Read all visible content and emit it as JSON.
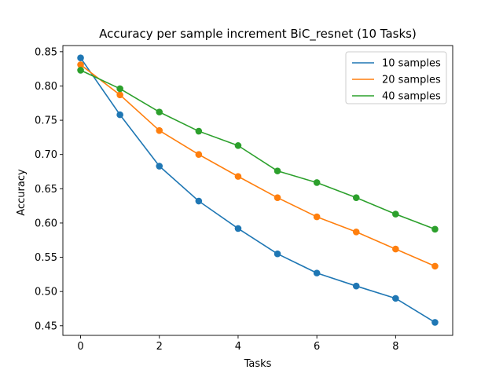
{
  "chart_data": {
    "type": "line",
    "title": "Accuracy per sample increment BiC_resnet (10 Tasks)",
    "xlabel": "Tasks",
    "ylabel": "Accuracy",
    "x": [
      0,
      1,
      2,
      3,
      4,
      5,
      6,
      7,
      8,
      9
    ],
    "xlim": [
      -0.45,
      9.45
    ],
    "ylim": [
      0.436,
      0.859
    ],
    "xticks": [
      0,
      2,
      4,
      6,
      8
    ],
    "yticks": [
      0.45,
      0.5,
      0.55,
      0.6,
      0.65,
      0.7,
      0.75,
      0.8,
      0.85
    ],
    "xtick_labels": [
      "0",
      "2",
      "4",
      "6",
      "8"
    ],
    "ytick_labels": [
      "0.45",
      "0.50",
      "0.55",
      "0.60",
      "0.65",
      "0.70",
      "0.75",
      "0.80",
      "0.85"
    ],
    "grid": false,
    "legend_position": "top-right",
    "series": [
      {
        "name": "10 samples",
        "color": "#1f77b4",
        "values": [
          0.841,
          0.758,
          0.683,
          0.632,
          0.592,
          0.555,
          0.527,
          0.508,
          0.49,
          0.455
        ]
      },
      {
        "name": "20 samples",
        "color": "#ff7f0e",
        "values": [
          0.831,
          0.787,
          0.735,
          0.7,
          0.668,
          0.637,
          0.609,
          0.587,
          0.562,
          0.537
        ]
      },
      {
        "name": "40 samples",
        "color": "#2ca02c",
        "values": [
          0.823,
          0.796,
          0.762,
          0.734,
          0.713,
          0.676,
          0.659,
          0.637,
          0.613,
          0.591
        ]
      }
    ]
  }
}
